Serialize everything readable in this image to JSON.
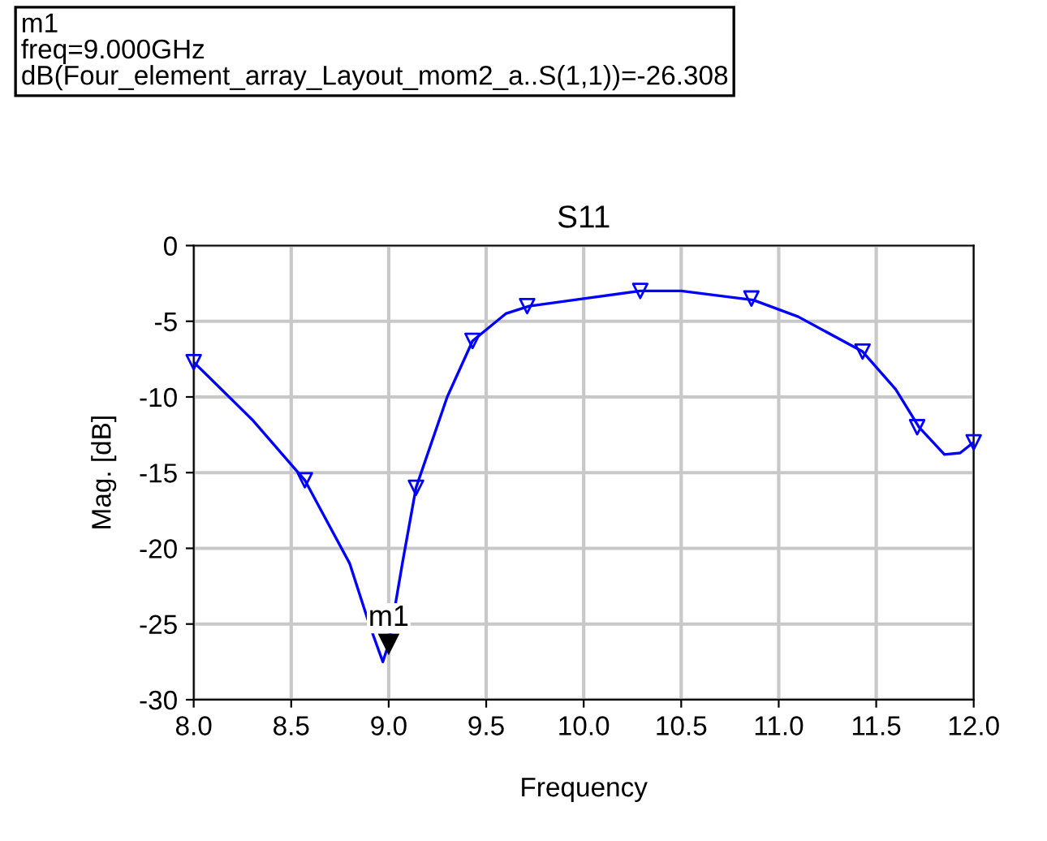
{
  "chart_data": {
    "type": "line",
    "title": "S11",
    "xlabel": "Frequency",
    "ylabel": "Mag. [dB]",
    "xlim": [
      8.0,
      12.0
    ],
    "ylim": [
      -30,
      0
    ],
    "xticks": [
      {
        "value": 8.0,
        "label": "8.0"
      },
      {
        "value": 8.5,
        "label": "8.5"
      },
      {
        "value": 9.0,
        "label": "9.0"
      },
      {
        "value": 9.5,
        "label": "9.5"
      },
      {
        "value": 10.0,
        "label": "10.0"
      },
      {
        "value": 10.5,
        "label": "10.5"
      },
      {
        "value": 11.0,
        "label": "11.0"
      },
      {
        "value": 11.5,
        "label": "11.5"
      },
      {
        "value": 12.0,
        "label": "12.0"
      }
    ],
    "yticks": [
      -30,
      -25,
      -20,
      -15,
      -10,
      -5,
      0
    ],
    "grid": true,
    "series": [
      {
        "color": "#0000ff",
        "marker": "none",
        "x": [
          8.0,
          8.3,
          8.57,
          8.8,
          8.9,
          8.97,
          9.0,
          9.07,
          9.14,
          9.3,
          9.43,
          9.6,
          9.72,
          10.0,
          10.29,
          10.5,
          10.87,
          11.1,
          11.43,
          11.6,
          11.72,
          11.85,
          11.93,
          12.0
        ],
        "values": [
          -7.7,
          -11.5,
          -15.5,
          -21,
          -25,
          -27.5,
          -26.3,
          -21,
          -16,
          -10,
          -6.3,
          -4.5,
          -4.0,
          -3.5,
          -3.0,
          -3.0,
          -3.6,
          -4.7,
          -7.0,
          -9.5,
          -12.0,
          -13.8,
          -13.7,
          -13.0
        ]
      },
      {
        "type": "scatter",
        "color": "#0000ff",
        "marker": "triangle",
        "x": [
          8.0,
          8.57,
          9.14,
          9.43,
          9.71,
          10.29,
          10.86,
          11.43,
          11.71,
          12.0
        ],
        "values": [
          -7.7,
          -15.5,
          -16.0,
          -6.3,
          -4.0,
          -3.0,
          -3.5,
          -7.0,
          -12.0,
          -13.0
        ]
      }
    ],
    "annotations": [
      {
        "text": "m1",
        "x": 9.0,
        "y": -26.308
      },
      "m1\nfreq=9.000GHz\ndB(Four_element_array_Layout_mom2_a..S(1,1))=-26.308"
    ]
  }
}
